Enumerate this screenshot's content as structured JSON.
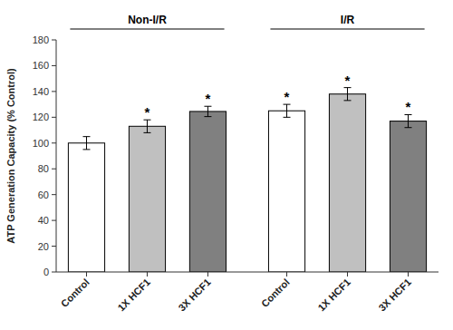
{
  "chart_data": {
    "type": "bar",
    "categories": [
      "Control",
      "1X HCF1",
      "3X HCF1",
      "Control",
      "1X HCF1",
      "3X HCF1"
    ],
    "values": [
      100,
      113,
      124.5,
      125,
      138,
      117
    ],
    "errors": [
      5,
      5,
      4,
      5,
      5,
      5
    ],
    "colors": [
      "white",
      "#c0c0c0",
      "#808080",
      "white",
      "#c0c0c0",
      "#808080"
    ],
    "ylabel": "ATP Generation Capacity (% Control)",
    "ylim": [
      0,
      180
    ],
    "yticks": [
      0,
      20,
      40,
      60,
      80,
      100,
      120,
      140,
      160,
      180
    ],
    "annotations": [
      null,
      "*",
      "*",
      "*",
      "*",
      "*"
    ],
    "groups": [
      {
        "label": "Non-I/R",
        "count": 3
      },
      {
        "label": "I/R",
        "count": 3
      }
    ]
  }
}
